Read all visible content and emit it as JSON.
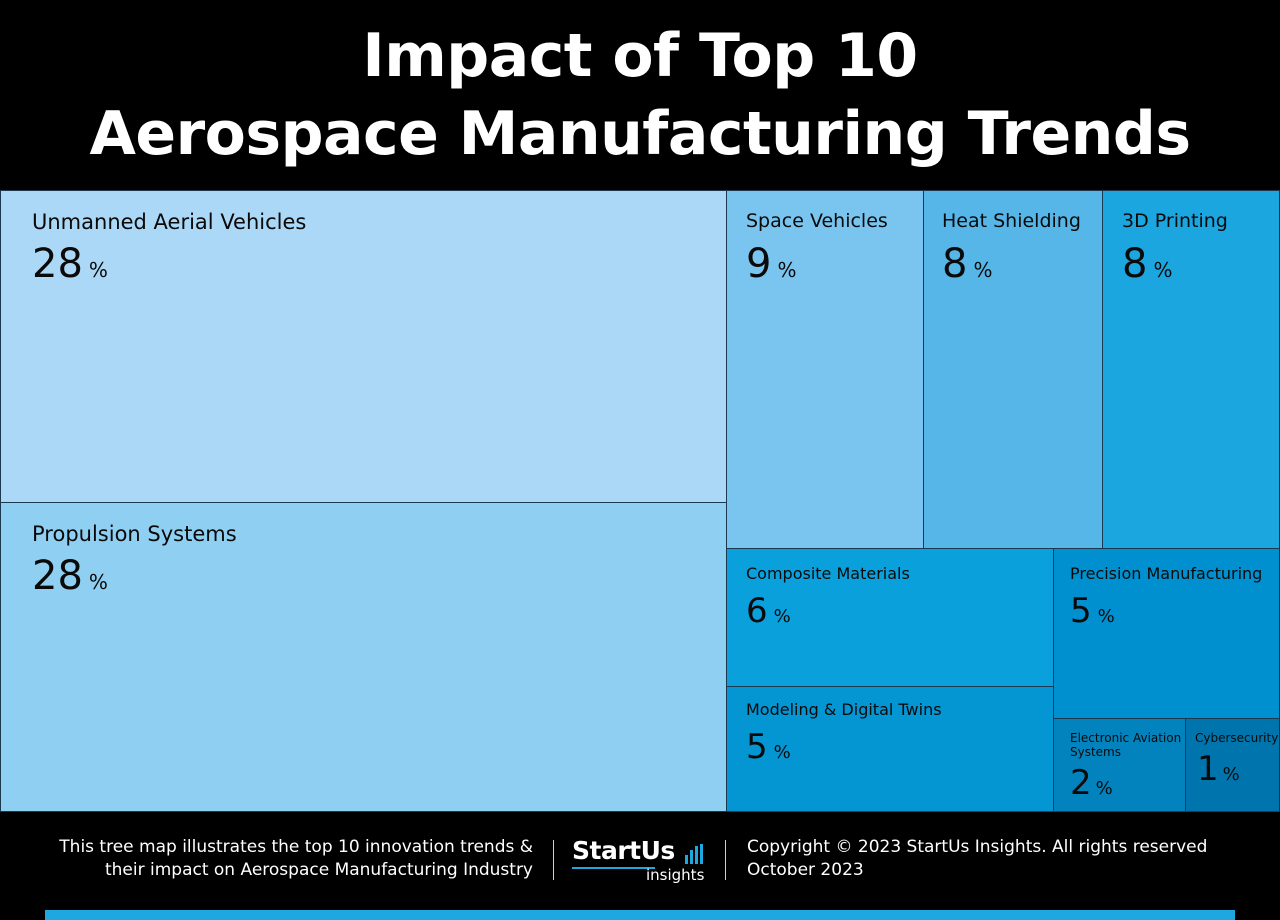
{
  "header": {
    "title_line1": "Impact of Top 10",
    "title_line2": "Aerospace Manufacturing Trends"
  },
  "chart_data": {
    "type": "treemap",
    "title": "Impact of Top 10 Aerospace Manufacturing Trends",
    "unit": "%",
    "items": [
      {
        "label": "Unmanned Aerial Vehicles",
        "value": 28,
        "color": "#abd8f6"
      },
      {
        "label": "Propulsion Systems",
        "value": 28,
        "color": "#8fcff2"
      },
      {
        "label": "Space Vehicles",
        "value": 9,
        "color": "#79c5ef"
      },
      {
        "label": "Heat Shielding",
        "value": 8,
        "color": "#56b6e7"
      },
      {
        "label": "3D Printing",
        "value": 8,
        "color": "#1ba6e0"
      },
      {
        "label": "Composite Materials",
        "value": 6,
        "color": "#0aa0dc"
      },
      {
        "label": "Precision Manufacturing",
        "value": 5,
        "color": "#0090cf"
      },
      {
        "label": "Modeling & Digital Twins",
        "value": 5,
        "color": "#0495d3"
      },
      {
        "label": "Electronic Aviation Systems",
        "value": 2,
        "color": "#0383bd"
      },
      {
        "label": "Cybersecurity",
        "value": 1,
        "color": "#0074ad"
      }
    ]
  },
  "footer": {
    "description_line1": "This tree map illustrates the top 10 innovation trends &",
    "description_line2": "their impact on Aerospace Manufacturing Industry",
    "logo_text": "StartUs",
    "logo_sub": "insights",
    "copyright_line1": "Copyright © 2023 StartUs Insights. All rights reserved",
    "copyright_line2": "October 2023",
    "accent_color": "#1fa8e0"
  }
}
